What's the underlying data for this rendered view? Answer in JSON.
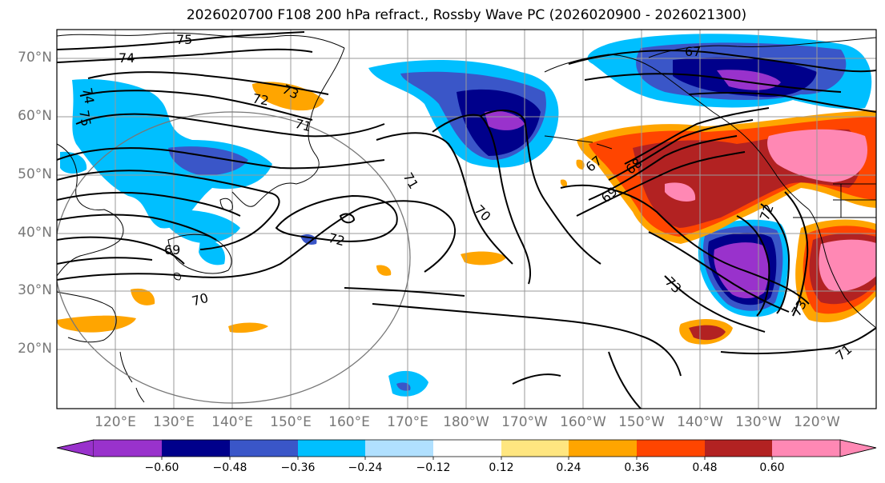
{
  "title": "2026020700 F108 200 hPa refract., Rossby Wave PC (2026020900 - 2026021300)",
  "lat_labels": [
    "70°N",
    "60°N",
    "50°N",
    "40°N",
    "30°N",
    "20°N"
  ],
  "lon_labels": [
    "120°E",
    "130°E",
    "140°E",
    "150°E",
    "160°E",
    "170°E",
    "180°W",
    "170°W",
    "160°W",
    "150°W",
    "140°W",
    "130°W",
    "120°W"
  ],
  "colorbar": {
    "labels": [
      "−0.60",
      "−0.48",
      "−0.36",
      "−0.24",
      "−0.12",
      "0.12",
      "0.24",
      "0.36",
      "0.48",
      "0.60"
    ],
    "colors": [
      "#9932cc",
      "#00008b",
      "#3a56c8",
      "#00bfff",
      "#b0e0ff",
      "#ffffff",
      "#ffe680",
      "#ffa500",
      "#ff4500",
      "#b22222",
      "#ff88b4"
    ]
  },
  "contour_labels": [
    "75",
    "74",
    "74",
    "75",
    "72",
    "73",
    "71",
    "71",
    "70",
    "72",
    "69",
    "70",
    "67",
    "67",
    "68",
    "69",
    "72",
    "73",
    "71",
    "73"
  ]
}
